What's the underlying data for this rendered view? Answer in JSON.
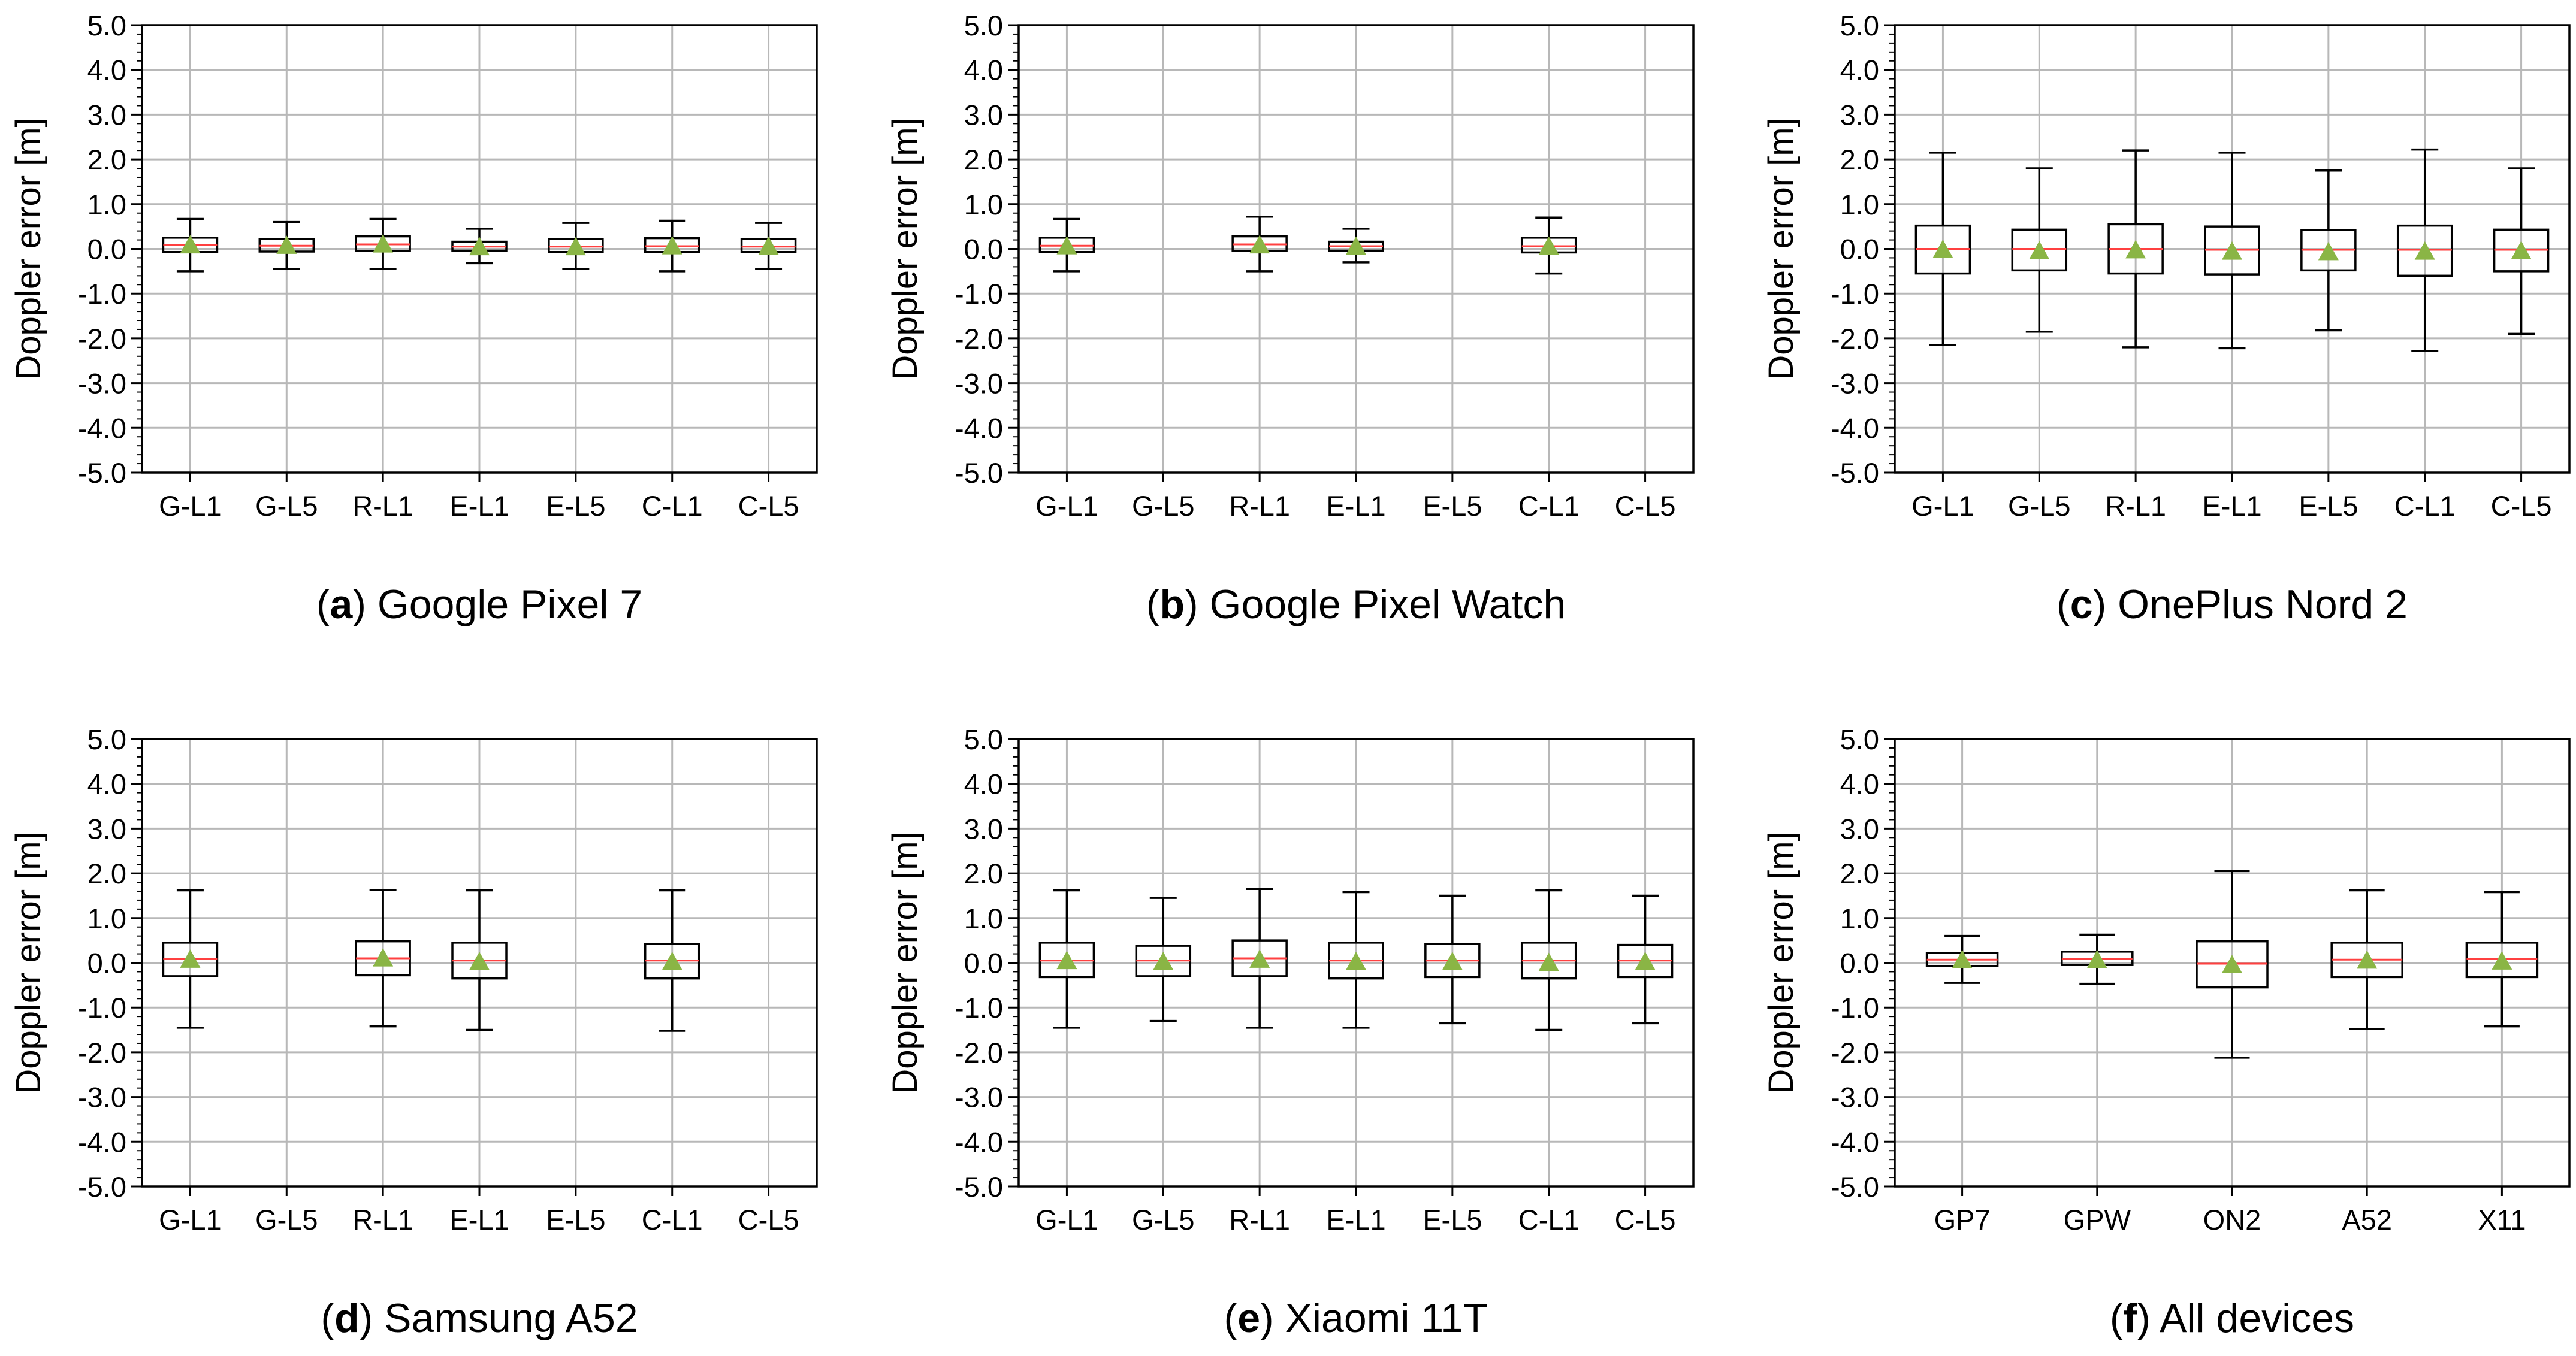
{
  "figure": {
    "ylabel": "Doppler error [m]",
    "ylim": [
      -5.0,
      5.0
    ],
    "yticks": [
      5.0,
      4.0,
      3.0,
      2.0,
      1.0,
      0.0,
      -1.0,
      -2.0,
      -3.0,
      -4.0,
      -5.0
    ],
    "ytick_labels": [
      "5.0",
      "4.0",
      "3.0",
      "2.0",
      "1.0",
      "0.0",
      "-1.0",
      "-2.0",
      "-3.0",
      "-4.0",
      "-5.0"
    ],
    "colors": {
      "box": "#000000",
      "median": "#ff4040",
      "mean_marker": "#8ab545",
      "grid": "#b8b8b8",
      "axis": "#000000"
    }
  },
  "chart_data": [
    {
      "type": "box",
      "caption_letter": "a",
      "caption_text": "Google Pixel 7",
      "categories": [
        "G-L1",
        "G-L5",
        "R-L1",
        "E-L1",
        "E-L5",
        "C-L1",
        "C-L5"
      ],
      "boxes": [
        {
          "whisker_low": -0.5,
          "q1": -0.07,
          "median": 0.08,
          "q3": 0.25,
          "whisker_high": 0.67,
          "mean": 0.08
        },
        {
          "whisker_low": -0.45,
          "q1": -0.06,
          "median": 0.07,
          "q3": 0.22,
          "whisker_high": 0.6,
          "mean": 0.07
        },
        {
          "whisker_low": -0.45,
          "q1": -0.05,
          "median": 0.1,
          "q3": 0.28,
          "whisker_high": 0.67,
          "mean": 0.1
        },
        {
          "whisker_low": -0.32,
          "q1": -0.04,
          "median": 0.05,
          "q3": 0.16,
          "whisker_high": 0.45,
          "mean": 0.04
        },
        {
          "whisker_low": -0.45,
          "q1": -0.07,
          "median": 0.05,
          "q3": 0.22,
          "whisker_high": 0.58,
          "mean": 0.04
        },
        {
          "whisker_low": -0.5,
          "q1": -0.07,
          "median": 0.06,
          "q3": 0.24,
          "whisker_high": 0.63,
          "mean": 0.06
        },
        {
          "whisker_low": -0.45,
          "q1": -0.07,
          "median": 0.05,
          "q3": 0.22,
          "whisker_high": 0.58,
          "mean": 0.05
        }
      ]
    },
    {
      "type": "box",
      "caption_letter": "b",
      "caption_text": "Google Pixel Watch",
      "categories": [
        "G-L1",
        "G-L5",
        "R-L1",
        "E-L1",
        "E-L5",
        "C-L1",
        "C-L5"
      ],
      "boxes": [
        {
          "whisker_low": -0.5,
          "q1": -0.07,
          "median": 0.07,
          "q3": 0.25,
          "whisker_high": 0.67,
          "mean": 0.06
        },
        null,
        {
          "whisker_low": -0.5,
          "q1": -0.05,
          "median": 0.1,
          "q3": 0.28,
          "whisker_high": 0.72,
          "mean": 0.08
        },
        {
          "whisker_low": -0.3,
          "q1": -0.04,
          "median": 0.06,
          "q3": 0.16,
          "whisker_high": 0.45,
          "mean": 0.05
        },
        null,
        {
          "whisker_low": -0.55,
          "q1": -0.08,
          "median": 0.06,
          "q3": 0.25,
          "whisker_high": 0.7,
          "mean": 0.05
        },
        null
      ]
    },
    {
      "type": "box",
      "caption_letter": "c",
      "caption_text": "OnePlus Nord 2",
      "categories": [
        "G-L1",
        "G-L5",
        "R-L1",
        "E-L1",
        "E-L5",
        "C-L1",
        "C-L5"
      ],
      "boxes": [
        {
          "whisker_low": -2.15,
          "q1": -0.55,
          "median": 0.0,
          "q3": 0.52,
          "whisker_high": 2.15,
          "mean": -0.02
        },
        {
          "whisker_low": -1.85,
          "q1": -0.48,
          "median": 0.0,
          "q3": 0.43,
          "whisker_high": 1.8,
          "mean": -0.05
        },
        {
          "whisker_low": -2.2,
          "q1": -0.55,
          "median": 0.0,
          "q3": 0.55,
          "whisker_high": 2.2,
          "mean": -0.03
        },
        {
          "whisker_low": -2.22,
          "q1": -0.57,
          "median": -0.02,
          "q3": 0.5,
          "whisker_high": 2.15,
          "mean": -0.06
        },
        {
          "whisker_low": -1.82,
          "q1": -0.48,
          "median": -0.02,
          "q3": 0.42,
          "whisker_high": 1.75,
          "mean": -0.07
        },
        {
          "whisker_low": -2.28,
          "q1": -0.6,
          "median": -0.02,
          "q3": 0.52,
          "whisker_high": 2.22,
          "mean": -0.06
        },
        {
          "whisker_low": -1.9,
          "q1": -0.5,
          "median": -0.02,
          "q3": 0.43,
          "whisker_high": 1.8,
          "mean": -0.05
        }
      ]
    },
    {
      "type": "box",
      "caption_letter": "d",
      "caption_text": "Samsung A52",
      "categories": [
        "G-L1",
        "G-L5",
        "R-L1",
        "E-L1",
        "E-L5",
        "C-L1",
        "C-L5"
      ],
      "boxes": [
        {
          "whisker_low": -1.45,
          "q1": -0.3,
          "median": 0.08,
          "q3": 0.45,
          "whisker_high": 1.62,
          "mean": 0.07
        },
        null,
        {
          "whisker_low": -1.42,
          "q1": -0.28,
          "median": 0.1,
          "q3": 0.48,
          "whisker_high": 1.63,
          "mean": 0.1
        },
        {
          "whisker_low": -1.5,
          "q1": -0.35,
          "median": 0.05,
          "q3": 0.45,
          "whisker_high": 1.62,
          "mean": 0.02
        },
        null,
        {
          "whisker_low": -1.52,
          "q1": -0.35,
          "median": 0.05,
          "q3": 0.42,
          "whisker_high": 1.62,
          "mean": 0.02
        },
        null
      ]
    },
    {
      "type": "box",
      "caption_letter": "e",
      "caption_text": "Xiaomi 11T",
      "categories": [
        "G-L1",
        "G-L5",
        "R-L1",
        "E-L1",
        "E-L5",
        "C-L1",
        "C-L5"
      ],
      "boxes": [
        {
          "whisker_low": -1.45,
          "q1": -0.32,
          "median": 0.05,
          "q3": 0.45,
          "whisker_high": 1.62,
          "mean": 0.04
        },
        {
          "whisker_low": -1.3,
          "q1": -0.3,
          "median": 0.05,
          "q3": 0.38,
          "whisker_high": 1.45,
          "mean": 0.02
        },
        {
          "whisker_low": -1.45,
          "q1": -0.3,
          "median": 0.1,
          "q3": 0.5,
          "whisker_high": 1.65,
          "mean": 0.07
        },
        {
          "whisker_low": -1.45,
          "q1": -0.35,
          "median": 0.05,
          "q3": 0.45,
          "whisker_high": 1.58,
          "mean": 0.02
        },
        {
          "whisker_low": -1.35,
          "q1": -0.32,
          "median": 0.05,
          "q3": 0.42,
          "whisker_high": 1.5,
          "mean": 0.02
        },
        {
          "whisker_low": -1.5,
          "q1": -0.35,
          "median": 0.05,
          "q3": 0.45,
          "whisker_high": 1.62,
          "mean": 0.0
        },
        {
          "whisker_low": -1.35,
          "q1": -0.32,
          "median": 0.05,
          "q3": 0.4,
          "whisker_high": 1.5,
          "mean": 0.02
        }
      ]
    },
    {
      "type": "box",
      "caption_letter": "f",
      "caption_text": "All devices",
      "categories": [
        "GP7",
        "GPW",
        "ON2",
        "A52",
        "X11"
      ],
      "boxes": [
        {
          "whisker_low": -0.45,
          "q1": -0.07,
          "median": 0.07,
          "q3": 0.22,
          "whisker_high": 0.6,
          "mean": 0.06
        },
        {
          "whisker_low": -0.47,
          "q1": -0.05,
          "median": 0.08,
          "q3": 0.25,
          "whisker_high": 0.63,
          "mean": 0.06
        },
        {
          "whisker_low": -2.12,
          "q1": -0.55,
          "median": -0.02,
          "q3": 0.48,
          "whisker_high": 2.05,
          "mean": -0.05
        },
        {
          "whisker_low": -1.48,
          "q1": -0.32,
          "median": 0.07,
          "q3": 0.45,
          "whisker_high": 1.62,
          "mean": 0.05
        },
        {
          "whisker_low": -1.42,
          "q1": -0.32,
          "median": 0.08,
          "q3": 0.45,
          "whisker_high": 1.58,
          "mean": 0.03
        }
      ]
    }
  ]
}
